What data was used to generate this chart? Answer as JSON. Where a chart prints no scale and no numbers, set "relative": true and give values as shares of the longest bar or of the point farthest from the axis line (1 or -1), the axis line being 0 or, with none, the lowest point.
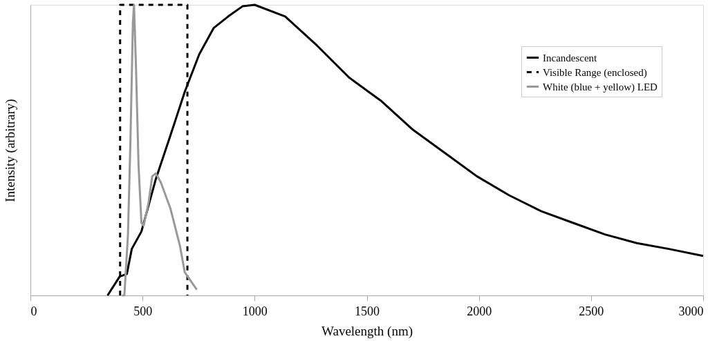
{
  "chart_data": {
    "type": "line",
    "xlabel": "Wavelength (nm)",
    "ylabel": "Intensity (arbitrary)",
    "relative": true,
    "xlim": [
      0,
      3000
    ],
    "xticks": [
      0,
      500,
      1000,
      1500,
      2000,
      2500,
      3000
    ],
    "grid": false,
    "legend": "top right",
    "series": [
      {
        "name": "Incandescent",
        "color": "#000000",
        "line_style": "solid",
        "x": [
          344,
          398,
          430,
          452,
          495,
          559,
          624,
          688,
          753,
          817,
          882,
          946,
          1000,
          1136,
          1278,
          1421,
          1563,
          1706,
          1849,
          1991,
          2134,
          2277,
          2419,
          2562,
          2705,
          2847,
          3000
        ],
        "values": [
          0,
          0.065,
          0.074,
          0.16,
          0.22,
          0.4,
          0.55,
          0.7,
          0.83,
          0.92,
          0.96,
          0.995,
          1,
          0.96,
          0.86,
          0.75,
          0.67,
          0.57,
          0.49,
          0.41,
          0.345,
          0.29,
          0.25,
          0.21,
          0.18,
          0.16,
          0.136
        ]
      },
      {
        "name": "Visible Range (enclosed)",
        "color": "#000000",
        "line_style": "dashed",
        "x": [
          400,
          400,
          700,
          700
        ],
        "values": [
          0,
          1,
          1,
          0
        ]
      },
      {
        "name": "White (blue + yellow) LED",
        "color": "#999999",
        "line_style": "solid",
        "x": [
          409,
          419,
          435,
          446,
          457,
          462,
          471,
          482,
          495,
          505,
          527,
          543,
          559,
          581,
          624,
          667,
          688,
          742
        ],
        "values": [
          0,
          0,
          0.21,
          0.53,
          0.94,
          1,
          0.78,
          0.45,
          0.25,
          0.24,
          0.32,
          0.41,
          0.42,
          0.39,
          0.3,
          0.17,
          0.08,
          0.02
        ]
      }
    ]
  }
}
